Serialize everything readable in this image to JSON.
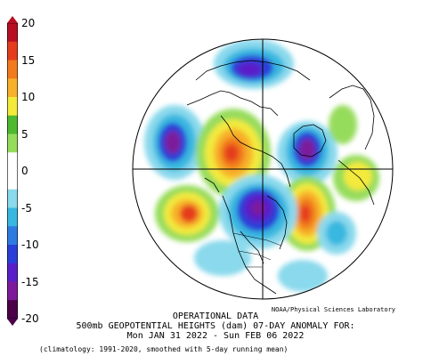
{
  "colorbar": {
    "ticks": [
      "20",
      "15",
      "10",
      "5",
      "0",
      "-5",
      "-10",
      "-15",
      "-20"
    ],
    "colors": [
      "#4b0048",
      "#7d1b9a",
      "#5a1fc8",
      "#2a3fd8",
      "#2f7be0",
      "#39b7e0",
      "#8ad9ec",
      "#ffffff",
      "#ffffff",
      "#96dc5c",
      "#4fb830",
      "#f3ea3c",
      "#f7b12a",
      "#f17b1e",
      "#e53c1e",
      "#b80f22"
    ]
  },
  "credit": "NOAA/Physical Sciences Laboratory",
  "title": {
    "line1": "OPERATIONAL DATA",
    "line2": "500mb GEOPOTENTIAL HEIGHTS (dam)   07-DAY ANOMALY FOR:",
    "line3": "Mon JAN 31 2022 - Sun FEB 06 2022"
  },
  "climatology": "(climatology: 1991-2020, smoothed with 5-day running mean)"
}
